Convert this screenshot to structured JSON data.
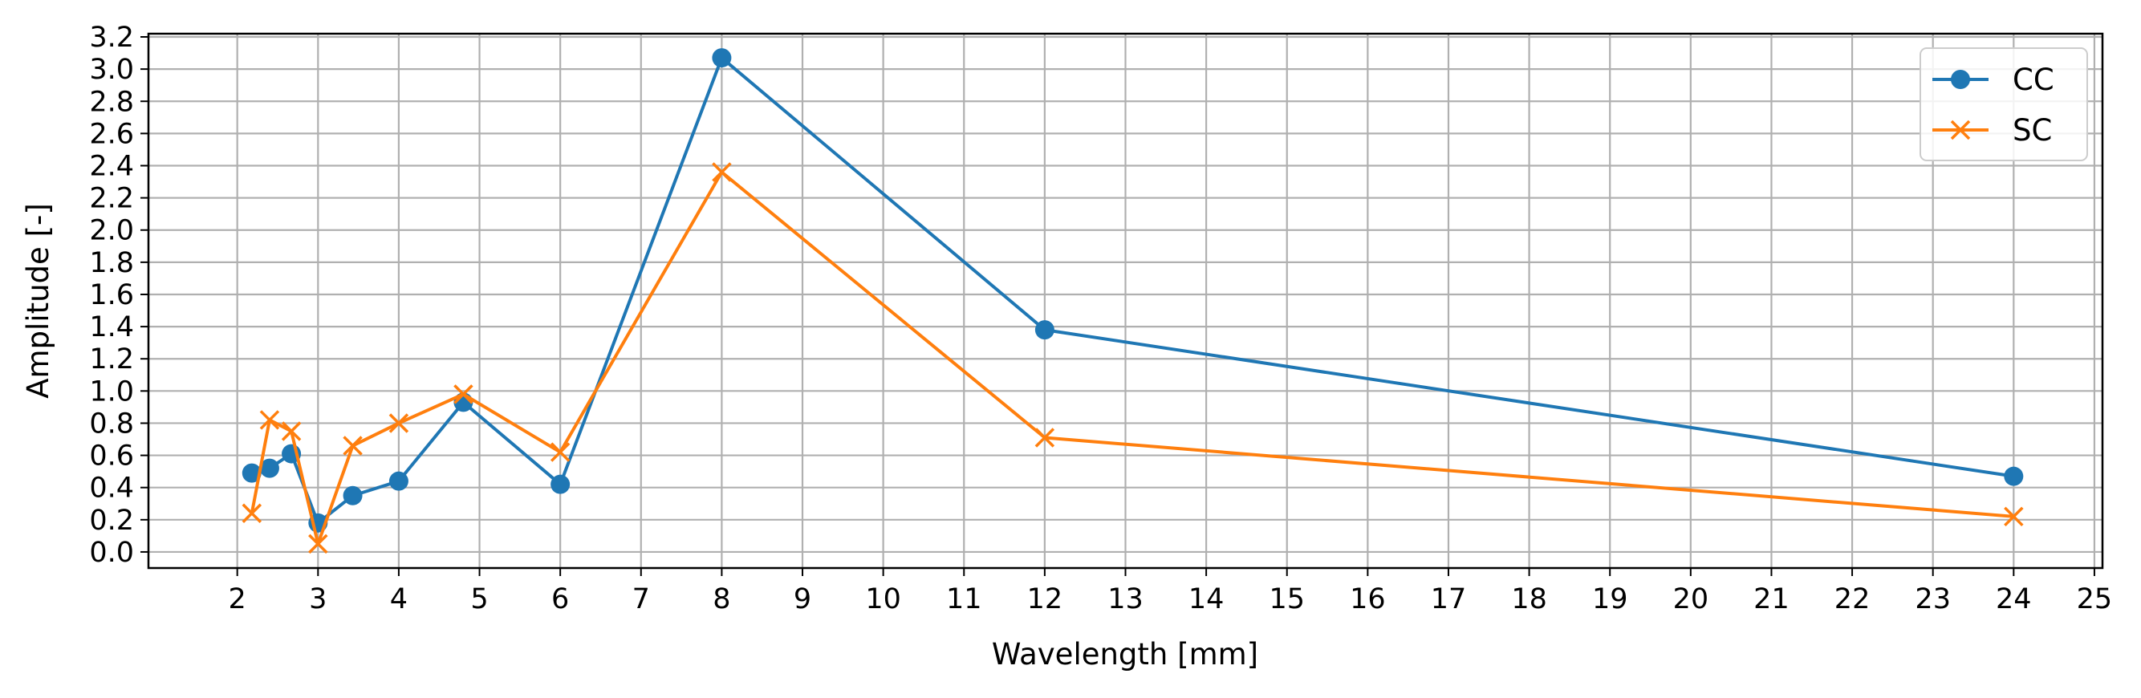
{
  "chart_data": {
    "type": "line",
    "title": "",
    "xlabel": "Wavelength [mm]",
    "ylabel": "Amplitude [-]",
    "xlim": [
      0.9,
      25.1
    ],
    "ylim": [
      -0.1,
      3.22
    ],
    "xticks": [
      2,
      3,
      4,
      5,
      6,
      7,
      8,
      9,
      10,
      11,
      12,
      13,
      14,
      15,
      16,
      17,
      18,
      19,
      20,
      21,
      22,
      23,
      24,
      25
    ],
    "yticks": [
      0.0,
      0.2,
      0.4,
      0.6,
      0.8,
      1.0,
      1.2,
      1.4,
      1.6,
      1.8,
      2.0,
      2.2,
      2.4,
      2.6,
      2.8,
      3.0,
      3.2
    ],
    "grid": true,
    "legend_position": "top-right",
    "series": [
      {
        "name": "CC",
        "color": "#1f77b4",
        "marker": "circle",
        "x": [
          2.18,
          2.4,
          2.67,
          3.0,
          3.43,
          4.0,
          4.8,
          6.0,
          8.0,
          12.0,
          24.0
        ],
        "y": [
          0.49,
          0.52,
          0.61,
          0.18,
          0.35,
          0.44,
          0.93,
          0.42,
          3.07,
          1.38,
          0.47
        ]
      },
      {
        "name": "SC",
        "color": "#ff7f0e",
        "marker": "x",
        "x": [
          2.18,
          2.4,
          2.67,
          3.0,
          3.43,
          4.0,
          4.8,
          6.0,
          8.0,
          12.0,
          24.0
        ],
        "y": [
          0.24,
          0.82,
          0.75,
          0.05,
          0.66,
          0.8,
          0.98,
          0.62,
          2.36,
          0.71,
          0.22
        ]
      }
    ]
  }
}
